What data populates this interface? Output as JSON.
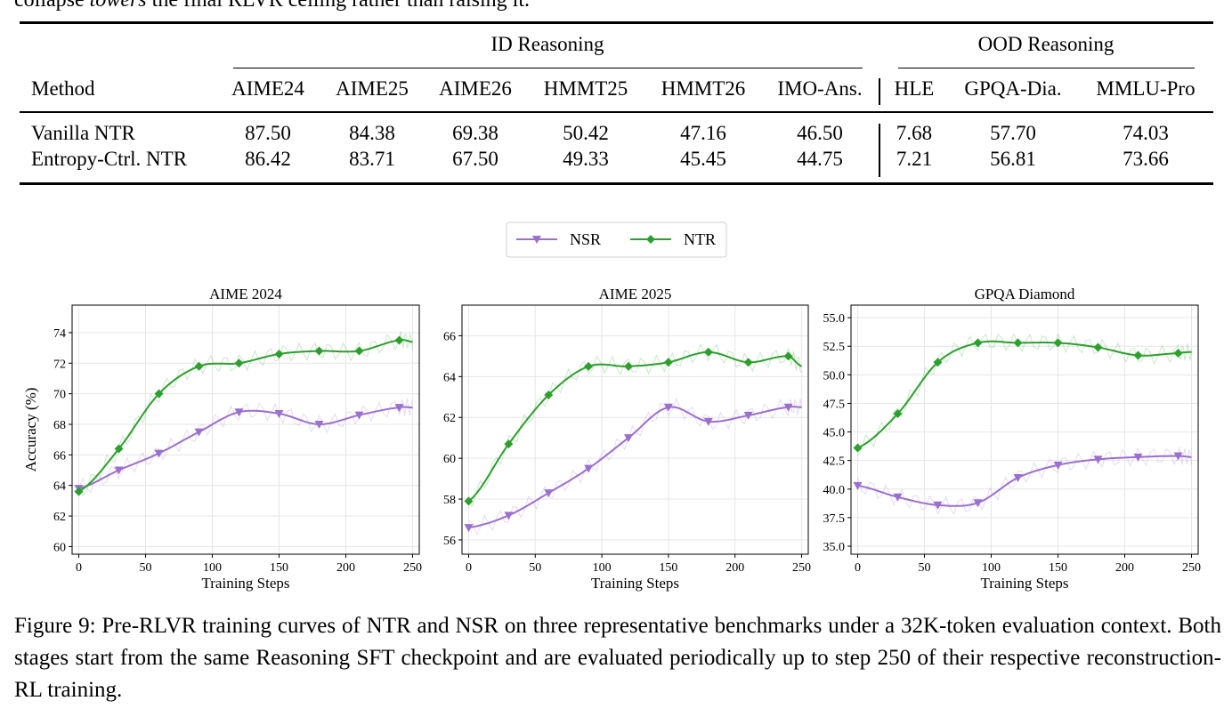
{
  "top_text": {
    "pre": "collapse ",
    "italic": "towers",
    "post": " the final RLVR ceiling rather than raising it."
  },
  "table": {
    "group_id": "ID Reasoning",
    "group_ood": "OOD Reasoning",
    "headers": [
      "Method",
      "AIME24",
      "AIME25",
      "AIME26",
      "HMMT25",
      "HMMT26",
      "IMO-Ans.",
      "HLE",
      "GPQA-Dia.",
      "MMLU-Pro"
    ],
    "rows": [
      [
        "Vanilla NTR",
        "87.50",
        "84.38",
        "69.38",
        "50.42",
        "47.16",
        "46.50",
        "7.68",
        "57.70",
        "74.03"
      ],
      [
        "Entropy-Ctrl. NTR",
        "86.42",
        "83.71",
        "67.50",
        "49.33",
        "45.45",
        "44.75",
        "7.21",
        "56.81",
        "73.66"
      ]
    ]
  },
  "legend": [
    {
      "name": "NSR",
      "color": "#9b6fcf",
      "marker": "triangle-down"
    },
    {
      "name": "NTR",
      "color": "#2ca02c",
      "marker": "diamond"
    }
  ],
  "chart_data": [
    {
      "type": "line",
      "title": "AIME 2024",
      "xlabel": "Training Steps",
      "ylabel": "Accuracy (%)",
      "xlim": [
        -5,
        255
      ],
      "ylim": [
        59.5,
        75.8
      ],
      "xticks": [
        0,
        50,
        100,
        150,
        200,
        250
      ],
      "yticks": [
        60,
        62,
        64,
        66,
        68,
        70,
        72,
        74
      ],
      "grid": true,
      "x": [
        0,
        30,
        60,
        90,
        120,
        150,
        180,
        210,
        240,
        250
      ],
      "series": [
        {
          "name": "NSR",
          "values": [
            63.8,
            65.0,
            66.1,
            67.5,
            68.8,
            68.7,
            68.0,
            68.6,
            69.1,
            69.1
          ]
        },
        {
          "name": "NTR",
          "values": [
            63.6,
            66.4,
            70.0,
            71.8,
            72.0,
            72.6,
            72.8,
            72.8,
            73.5,
            73.4
          ]
        }
      ]
    },
    {
      "type": "line",
      "title": "AIME 2025",
      "xlabel": "Training Steps",
      "ylabel": "",
      "xlim": [
        -5,
        255
      ],
      "ylim": [
        55.3,
        67.5
      ],
      "xticks": [
        0,
        50,
        100,
        150,
        200,
        250
      ],
      "yticks": [
        56,
        58,
        60,
        62,
        64,
        66
      ],
      "grid": true,
      "x": [
        0,
        30,
        60,
        90,
        120,
        150,
        180,
        210,
        240,
        250
      ],
      "series": [
        {
          "name": "NSR",
          "values": [
            56.6,
            57.2,
            58.3,
            59.5,
            61.0,
            62.5,
            61.8,
            62.1,
            62.5,
            62.5
          ]
        },
        {
          "name": "NTR",
          "values": [
            57.9,
            60.7,
            63.1,
            64.5,
            64.5,
            64.7,
            65.2,
            64.7,
            65.0,
            64.5
          ]
        }
      ]
    },
    {
      "type": "line",
      "title": "GPQA Diamond",
      "xlabel": "Training Steps",
      "ylabel": "",
      "xlim": [
        -5,
        255
      ],
      "ylim": [
        34.3,
        56.1
      ],
      "xticks": [
        0,
        50,
        100,
        150,
        200,
        250
      ],
      "yticks": [
        35.0,
        37.5,
        40.0,
        42.5,
        45.0,
        47.5,
        50.0,
        52.5,
        55.0
      ],
      "grid": true,
      "x": [
        0,
        30,
        60,
        90,
        120,
        150,
        180,
        210,
        240,
        250
      ],
      "series": [
        {
          "name": "NSR",
          "values": [
            40.3,
            39.3,
            38.6,
            38.8,
            41.0,
            42.1,
            42.6,
            42.8,
            42.9,
            42.8
          ]
        },
        {
          "name": "NTR",
          "values": [
            43.6,
            46.6,
            51.1,
            52.8,
            52.8,
            52.8,
            52.4,
            51.7,
            51.9,
            52.0
          ]
        }
      ]
    }
  ],
  "caption": "Figure 9: Pre-RLVR training curves of NTR and NSR on three representative benchmarks under a 32K-token evaluation context. Both stages start from the same Reasoning SFT checkpoint and are evaluated periodically up to step 250 of their respective reconstruction-RL training."
}
